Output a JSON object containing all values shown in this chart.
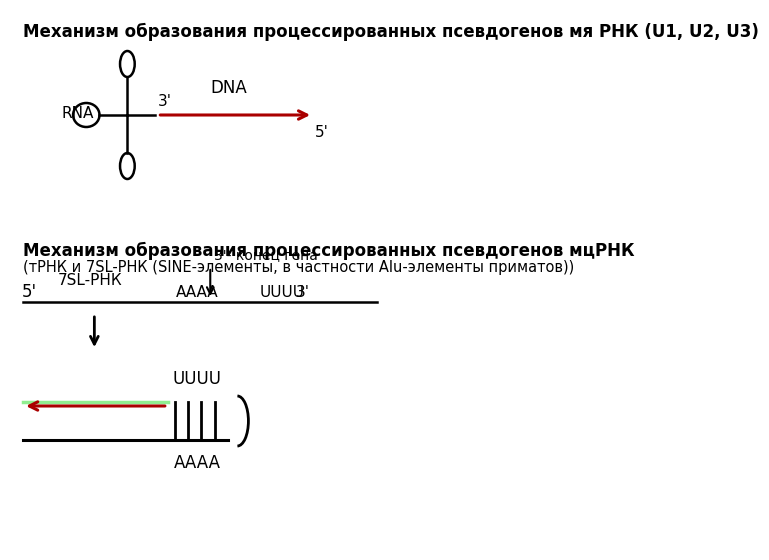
{
  "title1": "Механизм образования процессированных псевдогенов мя РНК (U1, U2, U3)",
  "title2_line1": "Механизм образования процессированных псевдогенов мцРНК",
  "title2_line2": "(тРНК и 7SL-РНК (SINE-элементы, в частности Alu-элементы приматов))",
  "bg_color": "#ffffff",
  "text_color": "#000000",
  "red_color": "#aa0000",
  "light_green": "#90EE90"
}
